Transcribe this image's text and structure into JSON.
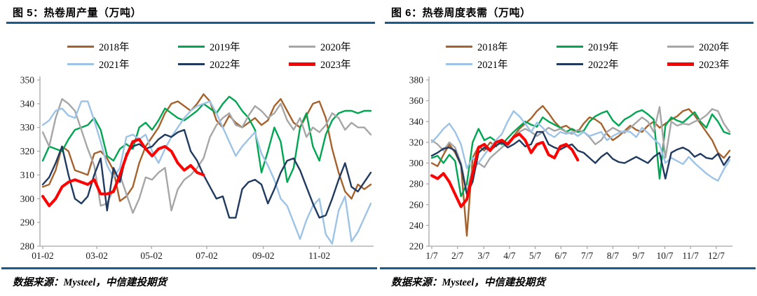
{
  "page": {
    "divider_color": "#1A5A8C",
    "axis_color": "#A6A6A6"
  },
  "figures": [
    {
      "title": "图 5：热卷周产量（万吨）",
      "source": "数据来源：Mysteel，中信建投期货",
      "chart_data": {
        "type": "line",
        "title": "热卷周产量（万吨）",
        "xlabel": "",
        "ylabel": "万吨",
        "ylim": [
          280,
          350
        ],
        "ytick_step": 10,
        "grid": false,
        "legend_position": "top",
        "x_tick_labels": [
          "01-02",
          "03-02",
          "05-02",
          "07-02",
          "09-02",
          "11-02"
        ],
        "x_tick_weeks": [
          0,
          8.4,
          16.9,
          25.5,
          34.3,
          43.0
        ],
        "total_weeks": 52,
        "series": [
          {
            "name": "2018年",
            "color": "#A5622D",
            "width": 2.4,
            "values": [
              305,
              306,
              312,
              322,
              320,
              312,
              311,
              310,
              319,
              320,
              317,
              312,
              299,
              301,
              305,
              315,
              322,
              326,
              330,
              336,
              340,
              341,
              339,
              337,
              340,
              344,
              341,
              333,
              330,
              335,
              332,
              330,
              332,
              334,
              331,
              333,
              339,
              342,
              337,
              332,
              330,
              335,
              340,
              341,
              334,
              321,
              311,
              303,
              300,
              306,
              304,
              306
            ]
          },
          {
            "name": "2019年",
            "color": "#00A651",
            "width": 2.4,
            "values": [
              316,
              322,
              321,
              320,
              325,
              329,
              330,
              331,
              334,
              329,
              318,
              316,
              321,
              323,
              321,
              330,
              332,
              329,
              333,
              338,
              336,
              334,
              333,
              335,
              337,
              340,
              338,
              336,
              340,
              343,
              341,
              337,
              334,
              329,
              311,
              320,
              330,
              324,
              307,
              313,
              330,
              336,
              322,
              316,
              327,
              333,
              336,
              337,
              337,
              336,
              337,
              337
            ]
          },
          {
            "name": "2020年",
            "color": "#A6A6A6",
            "width": 2.4,
            "values": [
              328,
              322,
              334,
              342,
              340,
              337,
              329,
              321,
              314,
              297,
              298,
              304,
              310,
              302,
              294,
              300,
              309,
              308,
              311,
              313,
              295,
              304,
              308,
              310,
              313,
              317,
              326,
              331,
              334,
              336,
              331,
              330,
              335,
              339,
              337,
              334,
              336,
              340,
              333,
              329,
              334,
              326,
              330,
              328,
              331,
              336,
              334,
              329,
              332,
              330,
              330,
              327
            ]
          },
          {
            "name": "2021年",
            "color": "#9DC3E6",
            "width": 2.4,
            "values": [
              331,
              333,
              337,
              338,
              335,
              334,
              341,
              341,
              333,
              324,
              314,
              309,
              313,
              326,
              327,
              325,
              327,
              320,
              315,
              321,
              326,
              330,
              334,
              337,
              339,
              340,
              341,
              336,
              330,
              324,
              318,
              322,
              325,
              328,
              319,
              314,
              308,
              300,
              297,
              290,
              283,
              291,
              297,
              300,
              285,
              281,
              295,
              301,
              282,
              286,
              292,
              298
            ]
          },
          {
            "name": "2022年",
            "color": "#203A60",
            "width": 2.4,
            "values": [
              306,
              309,
              315,
              322,
              310,
              300,
              298,
              301,
              310,
              317,
              295,
              313,
              307,
              319,
              322,
              323,
              321,
              322,
              325,
              327,
              326,
              328,
              329,
              320,
              316,
              310,
              305,
              300,
              301,
              292,
              292,
              304,
              307,
              308,
              306,
              298,
              304,
              311,
              316,
              317,
              312,
              305,
              298,
              292,
              293,
              300,
              308,
              315,
              305,
              303,
              307,
              311
            ]
          },
          {
            "name": "2023年",
            "color": "#FE0000",
            "width": 4,
            "values": [
              301,
              297,
              300,
              305,
              307,
              308,
              307,
              306,
              308,
              302,
              302,
              303,
              310,
              318,
              324,
              325,
              321,
              318,
              321,
              322,
              320,
              315,
              312,
              314,
              311,
              310
            ]
          }
        ]
      }
    },
    {
      "title": "图 6：热卷周度表需（万吨）",
      "source": "数据来源：Mysteel，中信建投期货",
      "chart_data": {
        "type": "line",
        "title": "热卷周度表需（万吨）",
        "xlabel": "",
        "ylabel": "万吨",
        "ylim": [
          220,
          380
        ],
        "ytick_step": 20,
        "grid": false,
        "legend_position": "top",
        "x_tick_labels": [
          "1/7",
          "2/7",
          "3/7",
          "4/7",
          "5/7",
          "6/7",
          "7/7",
          "8/7",
          "9/7",
          "10/7",
          "11/7",
          "12/7"
        ],
        "x_tick_weeks": [
          0,
          4.4,
          8.9,
          13.3,
          17.7,
          22.1,
          26.6,
          31.0,
          35.4,
          39.9,
          44.3,
          48.7
        ],
        "total_weeks": 52,
        "series": [
          {
            "name": "2018年",
            "color": "#A5622D",
            "width": 2.4,
            "values": [
              300,
              297,
              308,
              318,
              310,
              298,
              230,
              305,
              316,
              312,
              320,
              316,
              322,
              318,
              326,
              333,
              338,
              343,
              350,
              355,
              348,
              340,
              334,
              336,
              332,
              330,
              338,
              344,
              342,
              338,
              328,
              322,
              326,
              331,
              336,
              332,
              330,
              336,
              340,
              334,
              338,
              342,
              345,
              350,
              352,
              346,
              338,
              330,
              322,
              310,
              305,
              312
            ]
          },
          {
            "name": "2019年",
            "color": "#00A651",
            "width": 2.4,
            "values": [
              305,
              307,
              300,
              308,
              302,
              268,
              280,
              320,
              333,
              322,
              325,
              321,
              318,
              324,
              330,
              335,
              340,
              337,
              335,
              344,
              340,
              337,
              334,
              330,
              333,
              330,
              331,
              340,
              345,
              348,
              350,
              341,
              336,
              342,
              345,
              349,
              351,
              347,
              342,
              285,
              336,
              344,
              341,
              339,
              344,
              349,
              340,
              334,
              347,
              340,
              330,
              328
            ]
          },
          {
            "name": "2020年",
            "color": "#A6A6A6",
            "width": 2.4,
            "values": [
              322,
              318,
              312,
              320,
              315,
              300,
              272,
              295,
              300,
              296,
              305,
              310,
              315,
              320,
              325,
              330,
              333,
              330,
              326,
              330,
              334,
              331,
              333,
              330,
              328,
              332,
              330,
              325,
              318,
              322,
              330,
              334,
              331,
              329,
              334,
              339,
              344,
              340,
              330,
              354,
              305,
              340,
              336,
              338,
              337,
              340,
              342,
              346,
              352,
              350,
              338,
              330
            ]
          },
          {
            "name": "2021年",
            "color": "#9DC3E6",
            "width": 2.4,
            "values": [
              320,
              326,
              333,
              338,
              330,
              318,
              295,
              305,
              300,
              308,
              315,
              322,
              328,
              340,
              350,
              345,
              338,
              330,
              339,
              334,
              328,
              325,
              330,
              328,
              330,
              326,
              330,
              326,
              328,
              330,
              322,
              326,
              329,
              331,
              330,
              325,
              334,
              329,
              323,
              318,
              300,
              305,
              302,
              299,
              306,
              300,
              295,
              290,
              286,
              283,
              294,
              303
            ]
          },
          {
            "name": "2022年",
            "color": "#203A60",
            "width": 2.4,
            "values": [
              307,
              310,
              314,
              315,
              312,
              298,
              270,
              282,
              310,
              315,
              312,
              317,
              320,
              315,
              318,
              322,
              316,
              318,
              330,
              330,
              318,
              315,
              313,
              316,
              318,
              312,
              310,
              305,
              300,
              306,
              310,
              304,
              301,
              300,
              303,
              306,
              303,
              300,
              306,
              310,
              285,
              310,
              313,
              315,
              312,
              306,
              309,
              305,
              304,
              309,
              298,
              306
            ]
          },
          {
            "name": "2023年",
            "color": "#FE0000",
            "width": 4,
            "values": [
              288,
              285,
              290,
              282,
              270,
              258,
              265,
              290,
              315,
              318,
              312,
              320,
              322,
              318,
              325,
              328,
              322,
              310,
              318,
              320,
              308,
              305,
              316,
              318,
              313,
              303
            ]
          }
        ]
      }
    }
  ]
}
